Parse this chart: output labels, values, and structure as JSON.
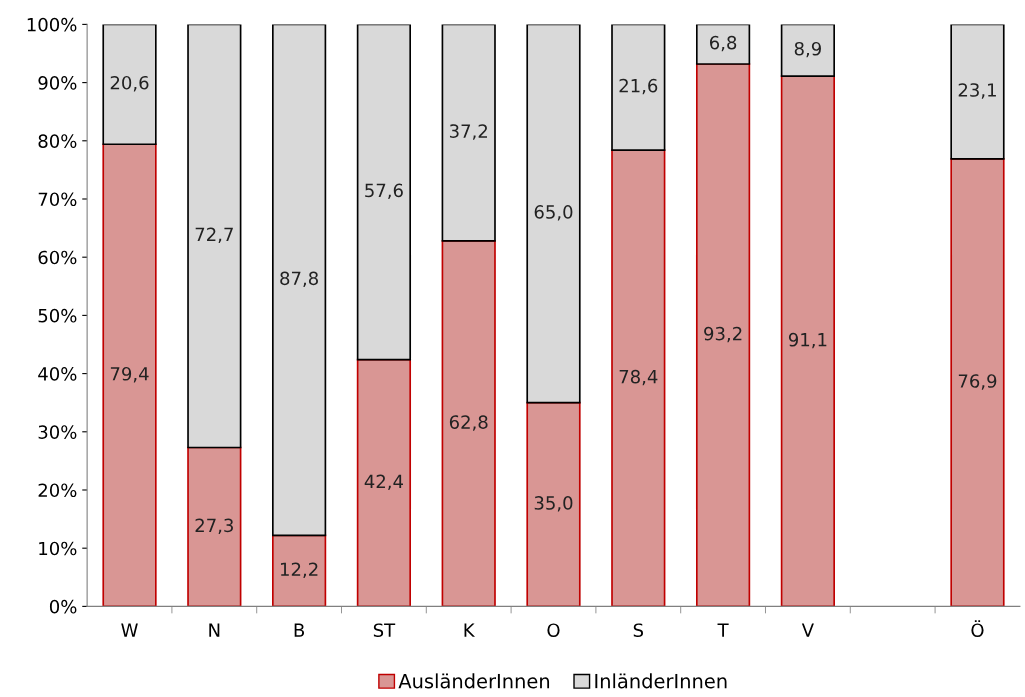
{
  "chart_data": {
    "type": "bar",
    "stacked": true,
    "categories": [
      "W",
      "N",
      "B",
      "ST",
      "K",
      "O",
      "S",
      "T",
      "V",
      null,
      "Ö"
    ],
    "series": [
      {
        "name": "AusländerInnen",
        "color": "#d99694",
        "values": [
          79.4,
          27.3,
          12.2,
          42.4,
          62.8,
          35.0,
          78.4,
          93.2,
          91.1,
          null,
          76.9
        ],
        "value_labels": [
          "79,4",
          "27,3",
          "12,2",
          "42,4",
          "62,8",
          "35,0",
          "78,4",
          "93,2",
          "91,1",
          null,
          "76,9"
        ]
      },
      {
        "name": "InländerInnen",
        "color": "#d9d9d9",
        "values": [
          20.6,
          72.7,
          87.8,
          57.6,
          37.2,
          65.0,
          21.6,
          6.8,
          8.9,
          null,
          23.1
        ],
        "value_labels": [
          "20,6",
          "72,7",
          "87,8",
          "57,6",
          "37,2",
          "65,0",
          "21,6",
          "6,8",
          "8,9",
          null,
          "23,1"
        ]
      }
    ],
    "ylim": [
      0,
      100
    ],
    "yticks": [
      {
        "value": 0,
        "label": "0%"
      },
      {
        "value": 10,
        "label": "10%"
      },
      {
        "value": 20,
        "label": "20%"
      },
      {
        "value": 30,
        "label": "30%"
      },
      {
        "value": 40,
        "label": "40%"
      },
      {
        "value": 50,
        "label": "50%"
      },
      {
        "value": 60,
        "label": "60%"
      },
      {
        "value": 70,
        "label": "70%"
      },
      {
        "value": 80,
        "label": "80%"
      },
      {
        "value": 90,
        "label": "90%"
      },
      {
        "value": 100,
        "label": "100%"
      }
    ],
    "grid": false,
    "legend": "bottom"
  }
}
